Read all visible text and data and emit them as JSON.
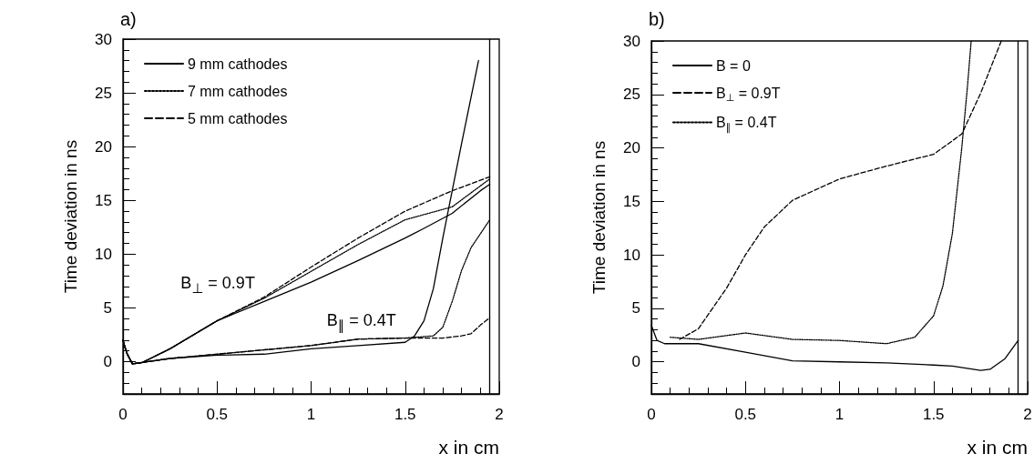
{
  "chart_data": [
    {
      "type": "line",
      "title": "a)",
      "xlabel": "x in cm",
      "ylabel": "Time deviation in ns",
      "xlim": [
        0,
        2
      ],
      "xticks": [
        0,
        0.5,
        1,
        1.5,
        2
      ],
      "ylim": [
        -3,
        30
      ],
      "yticks": [
        0,
        5,
        10,
        15,
        20,
        25,
        30
      ],
      "grid": false,
      "legend": "top left",
      "ref_lines": [
        {
          "axis": "x",
          "value": 1.95,
          "color": "#000000"
        }
      ],
      "annotations": [
        {
          "text": "B$_{⊥}$ = 0.9T",
          "x": 0.75,
          "y": 5.6
        },
        {
          "text": "B$_{∥}$ = 0.4T",
          "x": 1.5,
          "y": 2.2
        }
      ],
      "series": [
        {
          "name": "9 mm cathodes",
          "color": "#000000",
          "line_style": "solid",
          "x": [
            0,
            0.02,
            0.05,
            0.1,
            0.25,
            0.5,
            0.75,
            1,
            1.25,
            1.5,
            1.6,
            1.75,
            1.9,
            1.95
          ],
          "values": [
            2,
            0.8,
            -0.2,
            -0.1,
            1.2,
            3.8,
            5.6,
            7.4,
            9.4,
            11.5,
            12.4,
            13.8,
            15.9,
            16.5
          ]
        },
        {
          "name": "7 mm cathodes",
          "color": "#000000",
          "line_style": "dotted",
          "x": [
            0,
            0.02,
            0.05,
            0.1,
            0.25,
            0.5,
            0.75,
            1,
            1.25,
            1.5,
            1.75,
            1.95
          ],
          "values": [
            2,
            0.8,
            -0.2,
            -0.1,
            1.2,
            3.8,
            5.9,
            8.4,
            10.9,
            13.2,
            14.4,
            17
          ]
        },
        {
          "name": "5 mm cathodes",
          "color": "#000000",
          "line_style": "dashed",
          "x": [
            0,
            0.02,
            0.05,
            0.1,
            0.25,
            0.5,
            0.75,
            1,
            1.25,
            1.5,
            1.75,
            1.95
          ],
          "values": [
            2,
            0.8,
            -0.2,
            -0.1,
            1.2,
            3.8,
            6,
            8.8,
            11.5,
            14,
            15.9,
            17.2
          ]
        },
        {
          "color": "#000000",
          "line_style": "solid",
          "x": [
            0,
            0.02,
            0.05,
            0.25,
            0.5,
            0.75,
            1,
            1.25,
            1.5,
            1.55,
            1.6,
            1.65,
            1.7,
            1.75,
            1.8,
            1.89
          ],
          "values": [
            2,
            0.8,
            -0.2,
            0.3,
            0.6,
            0.7,
            1.2,
            1.5,
            1.8,
            2.4,
            3.8,
            6.8,
            11.5,
            15.9,
            20.3,
            28
          ]
        },
        {
          "color": "#000000",
          "line_style": "dotted",
          "x": [
            0,
            0.02,
            0.05,
            0.25,
            0.5,
            1,
            1.25,
            1.5,
            1.65,
            1.7,
            1.75,
            1.8,
            1.85,
            1.95
          ],
          "values": [
            2,
            0.8,
            -0.2,
            0.3,
            0.7,
            1.5,
            2.1,
            2.2,
            2.4,
            3.2,
            5.6,
            8.5,
            10.6,
            13.2
          ]
        },
        {
          "color": "#000000",
          "line_style": "dashed",
          "x": [
            0,
            0.02,
            0.05,
            0.25,
            0.5,
            1,
            1.25,
            1.5,
            1.7,
            1.8,
            1.85,
            1.9,
            1.95
          ],
          "values": [
            2,
            0.8,
            -0.2,
            0.3,
            0.7,
            1.5,
            2.1,
            2.2,
            2.2,
            2.4,
            2.6,
            3.4,
            4.1
          ]
        }
      ]
    },
    {
      "type": "line",
      "title": "b)",
      "xlabel": "x in cm",
      "ylabel": "Time deviation in ns",
      "xlim": [
        0,
        2
      ],
      "xticks": [
        0,
        0.5,
        1,
        1.5,
        2
      ],
      "ylim": [
        -3,
        30
      ],
      "yticks": [
        0,
        5,
        10,
        15,
        20,
        25,
        30
      ],
      "grid": false,
      "legend": "top left",
      "ref_lines": [
        {
          "axis": "x",
          "value": 1.95,
          "color": "#000000"
        }
      ],
      "series": [
        {
          "name": "B = 0",
          "color": "#000000",
          "line_style": "solid",
          "x": [
            0,
            0.03,
            0.07,
            0.25,
            0.5,
            0.75,
            1,
            1.25,
            1.5,
            1.6,
            1.75,
            1.8,
            1.88,
            1.95
          ],
          "values": [
            3.4,
            2,
            1.7,
            1.7,
            0.9,
            0.1,
            0,
            -0.1,
            -0.3,
            -0.4,
            -0.8,
            -0.7,
            0.3,
            2
          ]
        },
        {
          "name": "B$_{⊥}$ = 0.9T",
          "color": "#000000",
          "line_style": "dashed",
          "x": [
            0.15,
            0.25,
            0.4,
            0.5,
            0.6,
            0.75,
            1,
            1.25,
            1.5,
            1.65,
            1.75,
            1.86
          ],
          "values": [
            2.1,
            3.1,
            6.9,
            10,
            12.6,
            15.1,
            17.1,
            18.3,
            19.4,
            21.3,
            25.1,
            30
          ]
        },
        {
          "name": "B$_{∥}$ = 0.4T",
          "color": "#000000",
          "line_style": "dotted",
          "x": [
            0.1,
            0.25,
            0.5,
            0.75,
            1,
            1.25,
            1.4,
            1.5,
            1.55,
            1.6,
            1.65,
            1.68,
            1.7
          ],
          "values": [
            2.3,
            2.1,
            2.7,
            2.1,
            2,
            1.7,
            2.3,
            4.3,
            7.1,
            12,
            20,
            25.7,
            30
          ]
        }
      ]
    }
  ]
}
